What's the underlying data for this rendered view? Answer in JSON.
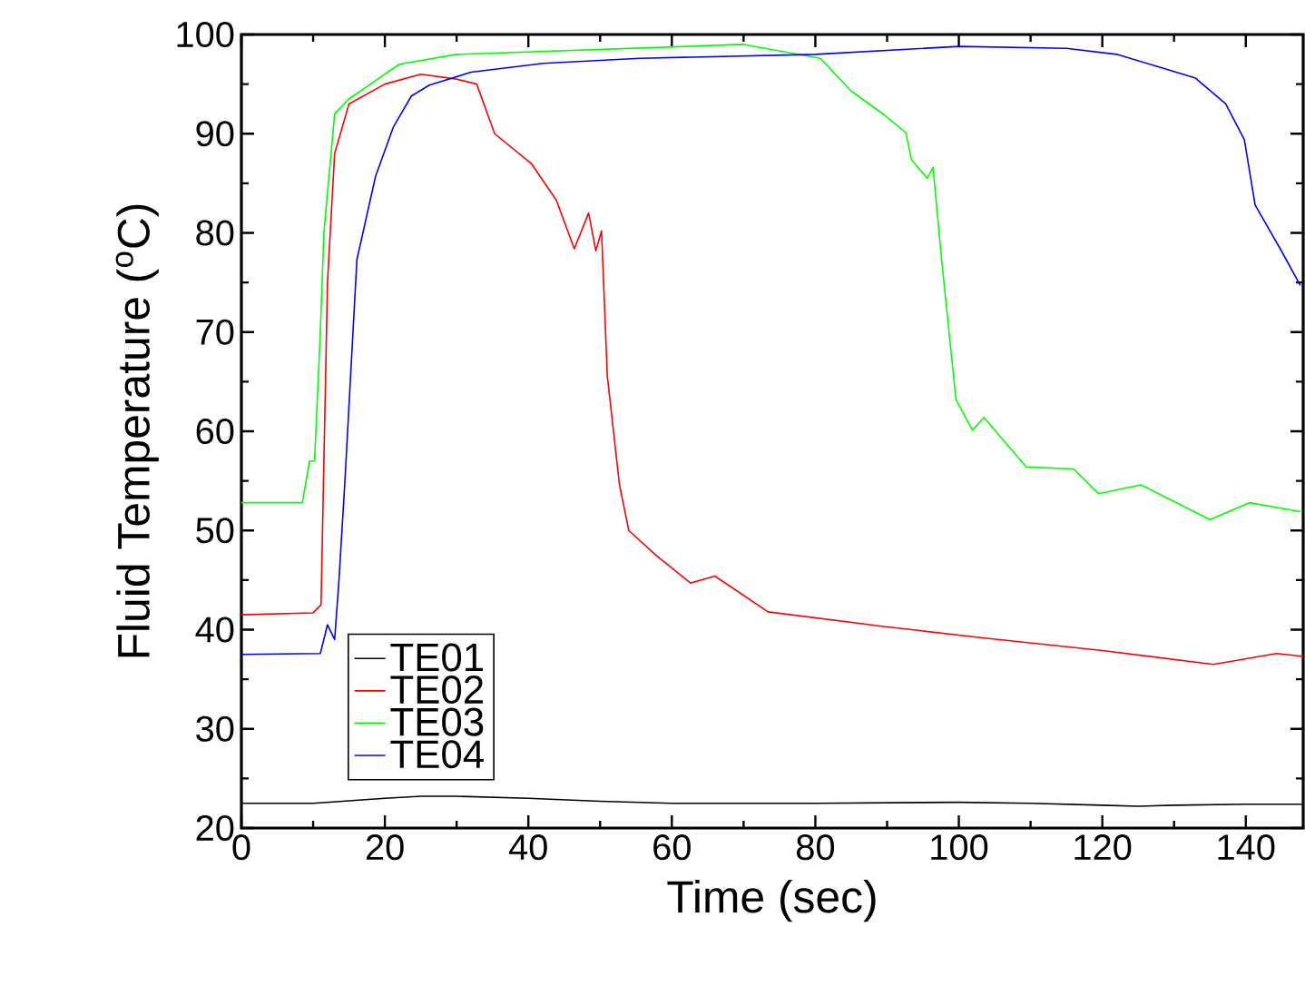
{
  "chart_data": {
    "type": "line",
    "xlabel": "Time (sec)",
    "ylabel": "Fluid Temperature ($^{o}$C)",
    "xlim": [
      0,
      148
    ],
    "ylim": [
      20,
      100
    ],
    "xticks": [
      0,
      20,
      40,
      60,
      80,
      100,
      120,
      140
    ],
    "yticks": [
      20,
      30,
      40,
      50,
      60,
      70,
      80,
      90,
      100
    ],
    "legend": "bottom left",
    "grid": false,
    "marker": "none",
    "line_style": "solid",
    "series": [
      {
        "name": "TE01",
        "color": "#000000",
        "x": [
          0,
          10,
          20,
          25,
          30,
          40,
          50,
          60,
          80,
          100,
          110,
          120,
          125,
          130,
          140,
          148
        ],
        "values": [
          22.5,
          22.5,
          23,
          23.2,
          23.2,
          23,
          22.7,
          22.5,
          22.5,
          22.6,
          22.5,
          22.3,
          22.2,
          22.3,
          22.4,
          22.4
        ]
      },
      {
        "name": "TE02",
        "color": "#ff0000",
        "x": [
          0,
          10,
          11.1,
          12,
          13,
          15,
          20,
          25,
          30,
          32.8,
          35.3,
          40.4,
          43.9,
          46.4,
          48.4,
          49.4,
          50.2,
          51,
          52.7,
          54,
          57.8,
          62.6,
          66,
          73.4,
          89.8,
          103,
          120,
          135.5,
          144.3,
          148
        ],
        "values": [
          41.5,
          41.7,
          42.5,
          75,
          88,
          93,
          95,
          96,
          95.5,
          95,
          90,
          87,
          83.3,
          78.4,
          82,
          78.2,
          80.2,
          65.6,
          54.6,
          50,
          47.5,
          44.7,
          45.4,
          41.8,
          40.3,
          39.2,
          37.9,
          36.5,
          37.6,
          37.3
        ]
      },
      {
        "name": "TE03",
        "color": "#00ff00",
        "x": [
          0,
          8.5,
          9.5,
          10.2,
          11,
          11.5,
          13,
          15,
          18,
          22,
          30,
          50,
          70,
          80.7,
          85,
          89.6,
          92.6,
          93.4,
          95.6,
          96.4,
          97.6,
          99.6,
          101.9,
          103.5,
          109.4,
          116,
          119.5,
          125.4,
          135,
          140.5,
          147.6
        ],
        "values": [
          52.8,
          52.8,
          57,
          57,
          70,
          80,
          92,
          93.5,
          95,
          97,
          98,
          98.5,
          99,
          97.6,
          94.3,
          91.9,
          90.1,
          87.4,
          85.5,
          86.6,
          77.3,
          63.2,
          60.1,
          61.4,
          56.4,
          56.2,
          53.7,
          54.6,
          51.1,
          52.8,
          51.9
        ]
      },
      {
        "name": "TE04",
        "color": "#0000ff",
        "x": [
          0,
          11,
          12,
          13,
          13.6,
          14.4,
          16.1,
          18.7,
          21.2,
          23.7,
          26.2,
          32,
          42.1,
          55.5,
          80,
          100,
          115,
          122,
          128,
          133,
          137.2,
          139.8,
          141.3,
          144.8,
          147.6
        ],
        "values": [
          37.5,
          37.6,
          40.5,
          39,
          45,
          54.6,
          77.3,
          85.7,
          90.7,
          93.8,
          94.9,
          96.2,
          97.1,
          97.6,
          98,
          98.8,
          98.6,
          98,
          96.7,
          95.6,
          93,
          89.4,
          82.8,
          78.4,
          74.7
        ]
      }
    ]
  }
}
